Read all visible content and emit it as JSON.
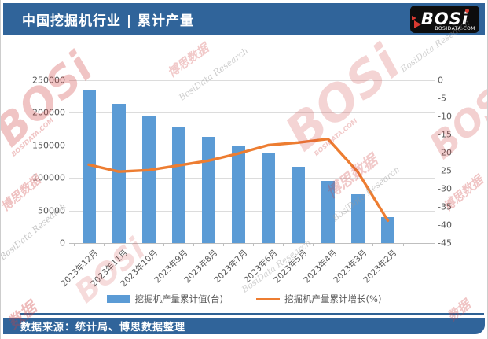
{
  "header": {
    "title": "中国挖掘机行业 | 累计产量",
    "logo": {
      "text_main": "BOS",
      "text_i": "i",
      "domain": "BOSIDATA.COM"
    }
  },
  "footer": {
    "source": "数据来源：统计局、博思数据整理"
  },
  "colors": {
    "bar": "#5B9BD5",
    "line": "#ED7D31",
    "banner_blue": "#30649A",
    "grid": "#DCDCDC",
    "tick_text": "#595959",
    "logo_red": "#D93A31"
  },
  "watermarks": {
    "items": [
      "BOSi",
      "博思数据",
      "BosiData Research",
      "BOSIDATA.COM",
      "数据"
    ]
  },
  "chart_data": {
    "type": "bar+line",
    "title": "中国挖掘机行业 | 累计产量",
    "categories": [
      "2023年12月",
      "2023年11月",
      "2023年10月",
      "2023年9月",
      "2023年8月",
      "2023年7月",
      "2023年6月",
      "2023年5月",
      "2023年4月",
      "2023年3月",
      "2023年2月"
    ],
    "series": [
      {
        "name": "挖掘机产量累计值(台)",
        "type": "bar",
        "axis": "left",
        "color": "#5B9BD5",
        "values": [
          235000,
          213500,
          194000,
          177300,
          162500,
          150000,
          138000,
          117000,
          95000,
          75000,
          39500
        ]
      },
      {
        "name": "挖掘机产量累计增长(%)",
        "type": "line",
        "axis": "right",
        "color": "#ED7D31",
        "values": [
          -23.4,
          -25.3,
          -24.9,
          -23.6,
          -22.3,
          -20.3,
          -18.0,
          -17.3,
          -16.3,
          -25.4,
          -38.8
        ]
      }
    ],
    "left_axis": {
      "min": 0,
      "max": 250000,
      "step": 50000,
      "ticks": [
        "0",
        "50000",
        "100000",
        "150000",
        "200000",
        "250000"
      ]
    },
    "right_axis": {
      "min": -45,
      "max": 0,
      "step": 5,
      "ticks": [
        "0",
        "-5",
        "-10",
        "-15",
        "-20",
        "-25",
        "-30",
        "-35",
        "-40",
        "-45"
      ]
    },
    "grid": true,
    "legend_position": "bottom"
  }
}
